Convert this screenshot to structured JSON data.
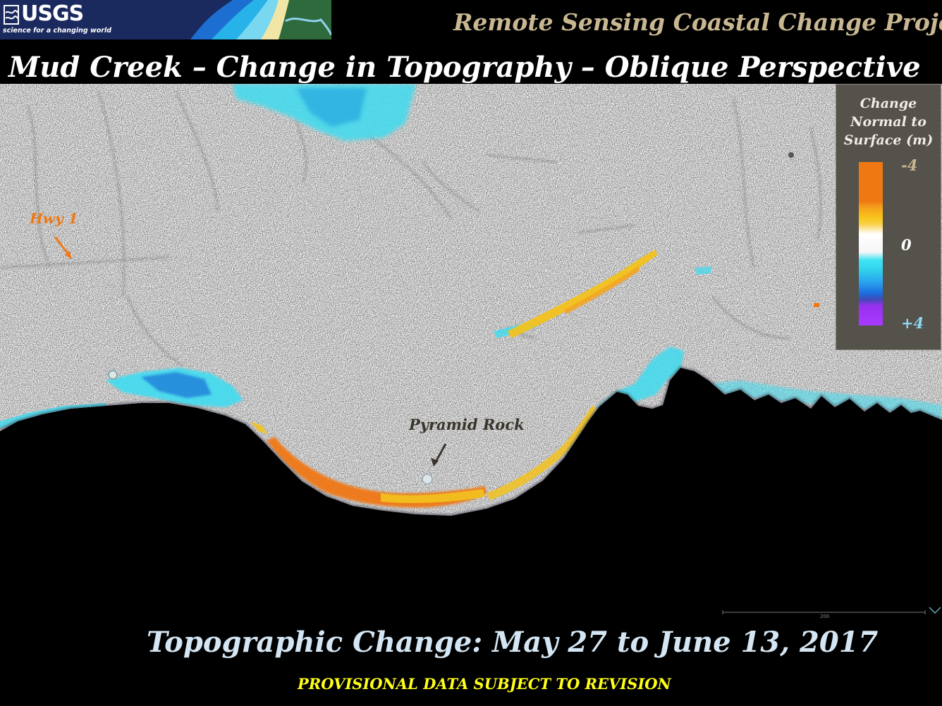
{
  "header": {
    "agency_logo_text": "USGS",
    "agency_tagline": "science for a changing world",
    "project_title": "Remote Sensing Coastal Change Project"
  },
  "main_title": "Mud Creek – Change in Topography – Oblique Perspective",
  "map": {
    "labels": {
      "highway": "Hwy 1",
      "rock": "Pyramid Rock"
    },
    "scale_bar_label": "200",
    "colors": {
      "erosion_orange": "#f07814",
      "erosion_yellow": "#f2c21e",
      "accretion_cyan": "#3fdcf0",
      "accretion_blue": "#1f78d8",
      "accretion_purple": "#a83aff",
      "ocean": "#000000",
      "land": "#eeeeee"
    }
  },
  "legend": {
    "title": "Change\nNormal to\nSurface (m)",
    "tick_top": "-4",
    "tick_mid": "0",
    "tick_bottom": "+4",
    "range_m": [
      -4,
      4
    ]
  },
  "footer": {
    "date_caption": "Topographic Change:  May 27 to June 13, 2017",
    "provisional_notice": "PROVISIONAL DATA SUBJECT TO REVISION"
  }
}
